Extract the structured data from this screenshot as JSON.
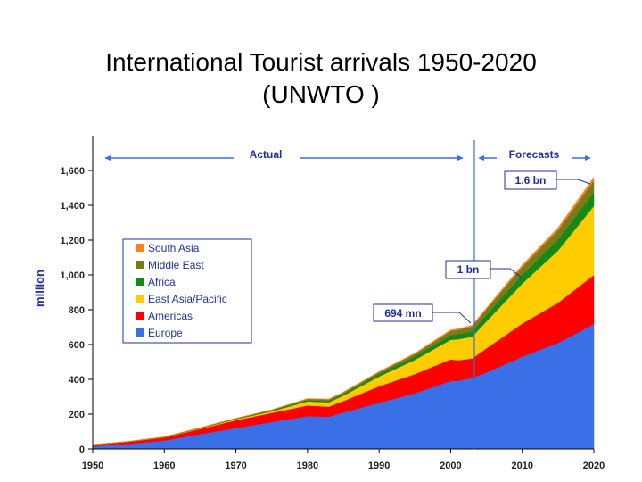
{
  "slide": {
    "title_line1": "International Tourist arrivals 1950-2020",
    "title_line2": "(UNWTO )"
  },
  "chart_data": {
    "type": "area",
    "stacked": true,
    "ylabel": "million",
    "xlabel": "",
    "xlim": [
      1950,
      2020
    ],
    "ylim": [
      0,
      1600
    ],
    "x_ticks": [
      "1950",
      "1960",
      "1970",
      "1980",
      "1990",
      "2000",
      "2010",
      "2020"
    ],
    "y_ticks": [
      "0",
      "200",
      "400",
      "600",
      "800",
      "1,000",
      "1,200",
      "1,400",
      "1,600"
    ],
    "grid": false,
    "legend_position": "left",
    "x": [
      1950,
      1955,
      1960,
      1965,
      1970,
      1975,
      1980,
      1983,
      1985,
      1990,
      1995,
      2000,
      2001,
      2003,
      2005,
      2010,
      2015,
      2020
    ],
    "series": [
      {
        "name": "Europe",
        "color": "#3a6fe8",
        "values": [
          16,
          29,
          48,
          85,
          120,
          155,
          188,
          185,
          210,
          265,
          320,
          390,
          392,
          408,
          440,
          530,
          610,
          717
        ]
      },
      {
        "name": "Americas",
        "color": "#ff0000",
        "values": [
          8,
          12,
          18,
          30,
          45,
          52,
          62,
          58,
          65,
          95,
          110,
          125,
          118,
          112,
          138,
          190,
          230,
          282
        ]
      },
      {
        "name": "East Asia/Pacific",
        "color": "#ffcc00",
        "values": [
          0.5,
          1,
          1.5,
          3,
          6,
          9,
          23,
          25,
          31,
          56,
          82,
          112,
          120,
          125,
          155,
          230,
          300,
          397
        ]
      },
      {
        "name": "Africa",
        "color": "#138a13",
        "values": [
          0.5,
          1,
          1,
          2,
          2.5,
          4.5,
          7,
          8,
          9.5,
          15,
          20,
          27,
          29,
          31,
          37,
          50,
          62,
          77
        ]
      },
      {
        "name": "Middle East",
        "color": "#7a7a1a",
        "values": [
          0.5,
          0.6,
          0.8,
          1.5,
          2,
          3,
          7,
          8,
          8,
          10,
          14,
          24,
          25,
          28,
          33,
          46,
          56,
          69
        ]
      },
      {
        "name": "South Asia",
        "color": "#ff8020",
        "values": [
          0.1,
          0.2,
          0.3,
          1,
          1.5,
          2,
          2.5,
          3,
          3,
          3.5,
          4.5,
          6,
          6,
          7,
          8,
          11,
          14,
          19
        ]
      }
    ],
    "annotations": {
      "actual": "Actual",
      "forecasts": "Forecasts",
      "v694": "694 mn",
      "v1bn": "1 bn",
      "v16bn": "1.6 bn"
    }
  }
}
